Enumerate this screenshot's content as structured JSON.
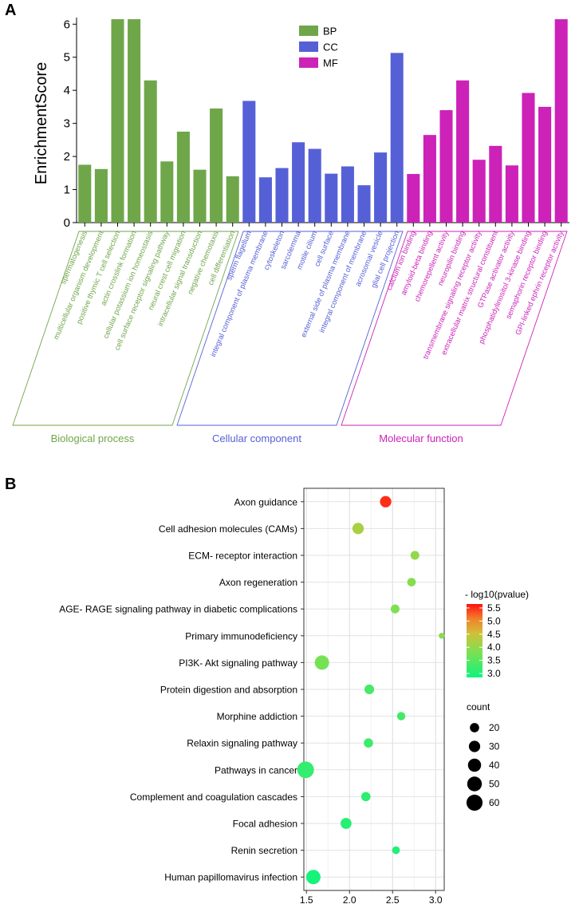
{
  "panel_a": {
    "label": "A",
    "colors": {
      "BP": "#6fa64a",
      "CC": "#5660d6",
      "MF": "#cc22b8"
    }
  },
  "panel_b": {
    "label": "B",
    "colors": {
      "low": "#19f27a",
      "mid": "#c8c83c",
      "high": "#ff1010"
    }
  },
  "chart_data": [
    {
      "type": "bar",
      "title": "",
      "ylabel": "EnrichmentScore",
      "xlabel": "",
      "ylim": [
        0,
        6.2
      ],
      "yticks": [
        0,
        1,
        2,
        3,
        4,
        5,
        6
      ],
      "legend": {
        "position": "top-center",
        "entries": [
          "BP",
          "CC",
          "MF"
        ]
      },
      "groups": [
        {
          "key": "BP",
          "name": "Biological process"
        },
        {
          "key": "CC",
          "name": "Cellular component"
        },
        {
          "key": "MF",
          "name": "Molecular function"
        }
      ],
      "bars": [
        {
          "term": "spermatogenesis",
          "group": "BP",
          "value": 1.75
        },
        {
          "term": "multicellular organism development",
          "group": "BP",
          "value": 1.62
        },
        {
          "term": "positive thymic T cell selection",
          "group": "BP",
          "value": 6.15
        },
        {
          "term": "actin crosslink formation",
          "group": "BP",
          "value": 6.15
        },
        {
          "term": "cellular potassium ion homeostasis",
          "group": "BP",
          "value": 4.3
        },
        {
          "term": "cell surface receptor signaling pathway",
          "group": "BP",
          "value": 1.85
        },
        {
          "term": "neural crest cell migration",
          "group": "BP",
          "value": 2.75
        },
        {
          "term": "intracellular signal transduction",
          "group": "BP",
          "value": 1.6
        },
        {
          "term": "negative chemotaxis",
          "group": "BP",
          "value": 3.45
        },
        {
          "term": "cell differentiation",
          "group": "BP",
          "value": 1.4
        },
        {
          "term": "sperm flagellum",
          "group": "CC",
          "value": 3.68
        },
        {
          "term": "integral component of plasma membrane",
          "group": "CC",
          "value": 1.37
        },
        {
          "term": "cytoskeleton",
          "group": "CC",
          "value": 1.65
        },
        {
          "term": "sarcolemma",
          "group": "CC",
          "value": 2.43
        },
        {
          "term": "motile cilium",
          "group": "CC",
          "value": 2.23
        },
        {
          "term": "cell surface",
          "group": "CC",
          "value": 1.48
        },
        {
          "term": "external side of plasma membrane",
          "group": "CC",
          "value": 1.7
        },
        {
          "term": "integral component of membrane",
          "group": "CC",
          "value": 1.13
        },
        {
          "term": "acrosomal vesicle",
          "group": "CC",
          "value": 2.12
        },
        {
          "term": "glial cell projection",
          "group": "CC",
          "value": 5.13
        },
        {
          "term": "calcium ion binding",
          "group": "MF",
          "value": 1.47
        },
        {
          "term": "amyloid-beta binding",
          "group": "MF",
          "value": 2.65
        },
        {
          "term": "chemorepellent activity",
          "group": "MF",
          "value": 3.4
        },
        {
          "term": "neuropilin binding",
          "group": "MF",
          "value": 4.3
        },
        {
          "term": "transmembrane signaling receptor activity",
          "group": "MF",
          "value": 1.9
        },
        {
          "term": "extracellular matrix structural constituent",
          "group": "MF",
          "value": 2.32
        },
        {
          "term": "GTPase activator activity",
          "group": "MF",
          "value": 1.73
        },
        {
          "term": "phosphatidylinositol 3-kinase binding",
          "group": "MF",
          "value": 3.92
        },
        {
          "term": "semaphorin receptor binding",
          "group": "MF",
          "value": 3.5
        },
        {
          "term": "GPI-linked ephrin receptor activity",
          "group": "MF",
          "value": 6.15
        }
      ]
    },
    {
      "type": "scatter",
      "title": "",
      "xlabel": "",
      "ylabel": "",
      "xlim": [
        1.47,
        3.1
      ],
      "xticks": [
        "1.5",
        "2.0",
        "2.5",
        "3.0"
      ],
      "color_legend": {
        "title": "- log10(pvalue)",
        "ticks": [
          "5.5",
          "5.0",
          "4.5",
          "4.0",
          "3.5",
          "3.0"
        ],
        "min": 2.85,
        "max": 5.65
      },
      "size_legend": {
        "title": "count",
        "values": [
          20,
          30,
          40,
          50,
          60
        ]
      },
      "points": [
        {
          "pathway": "Axon guidance",
          "x": 2.42,
          "count": 30,
          "pvalue_log": 5.5
        },
        {
          "pathway": "Cell adhesion molecules (CAMs)",
          "x": 2.1,
          "count": 30,
          "pvalue_log": 4.2
        },
        {
          "pathway": "ECM- receptor interaction",
          "x": 2.76,
          "count": 18,
          "pvalue_log": 4.0
        },
        {
          "pathway": "Axon regeneration",
          "x": 2.72,
          "count": 17,
          "pvalue_log": 3.9
        },
        {
          "pathway": "AGE- RAGE signaling pathway in diabetic complications",
          "x": 2.53,
          "count": 18,
          "pvalue_log": 3.8
        },
        {
          "pathway": "Primary immunodeficiency",
          "x": 3.07,
          "count": 8,
          "pvalue_log": 3.9
        },
        {
          "pathway": "PI3K- Akt signaling pathway",
          "x": 1.68,
          "count": 48,
          "pvalue_log": 3.75
        },
        {
          "pathway": "Protein digestion and absorption",
          "x": 2.23,
          "count": 22,
          "pvalue_log": 3.35
        },
        {
          "pathway": "Morphine addiction",
          "x": 2.6,
          "count": 16,
          "pvalue_log": 3.3
        },
        {
          "pathway": "Relaxin signaling pathway",
          "x": 2.22,
          "count": 20,
          "pvalue_log": 3.25
        },
        {
          "pathway": "Pathways in cancer",
          "x": 1.49,
          "count": 65,
          "pvalue_log": 3.15
        },
        {
          "pathway": "Complement and coagulation cascades",
          "x": 2.19,
          "count": 20,
          "pvalue_log": 3.1
        },
        {
          "pathway": "Focal adhesion",
          "x": 1.96,
          "count": 28,
          "pvalue_log": 3.05
        },
        {
          "pathway": "Renin secretion",
          "x": 2.54,
          "count": 14,
          "pvalue_log": 3.0
        },
        {
          "pathway": "Human papillomavirus infection",
          "x": 1.58,
          "count": 48,
          "pvalue_log": 2.9
        }
      ]
    }
  ]
}
